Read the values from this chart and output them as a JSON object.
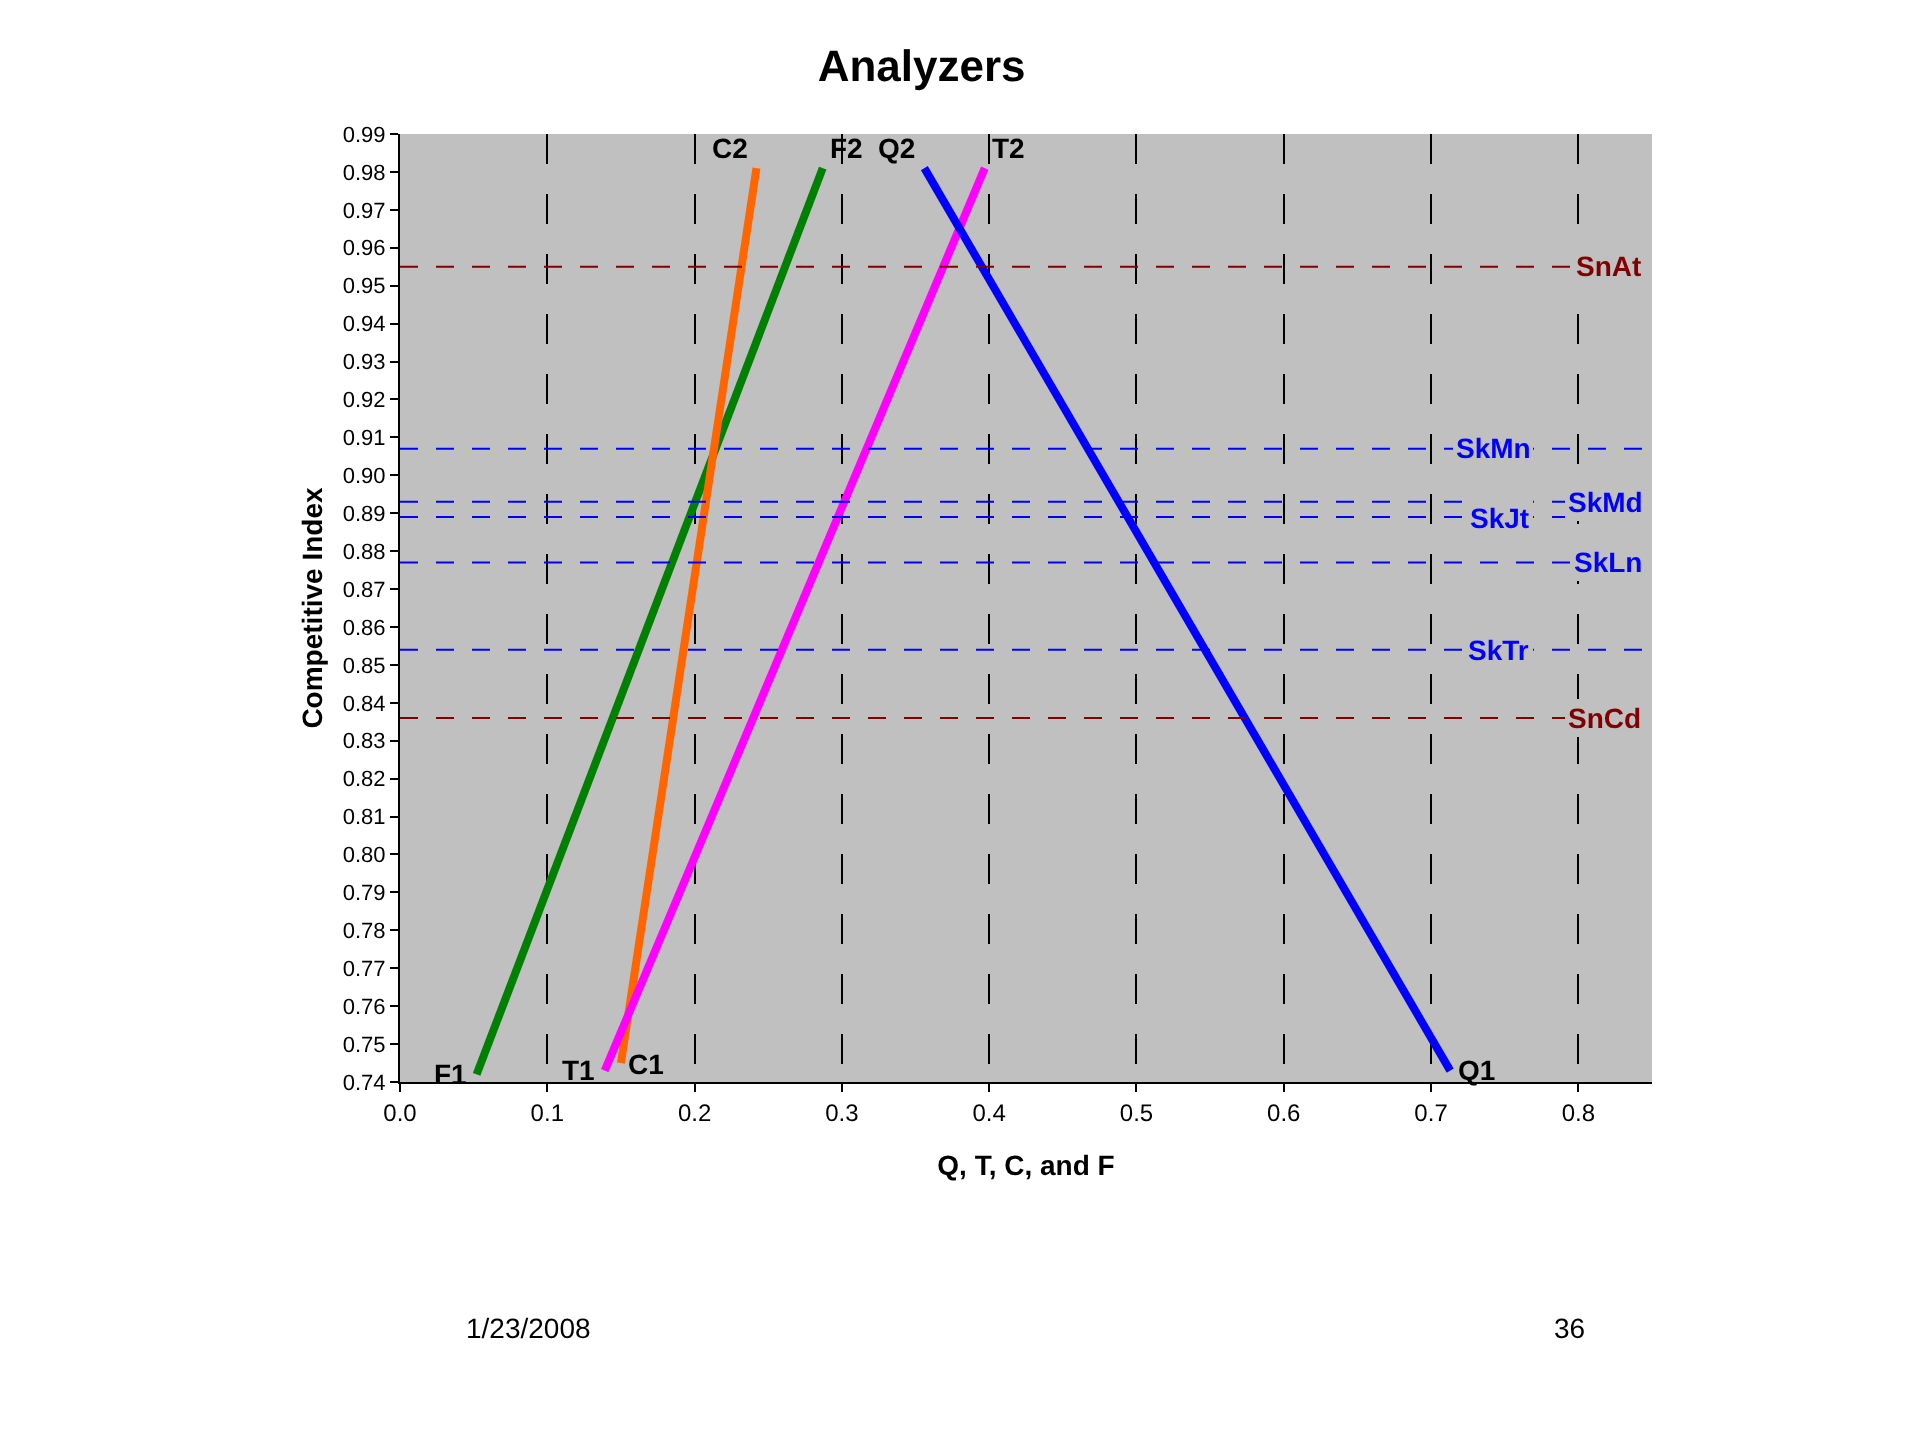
{
  "chart_data": {
    "type": "line",
    "title": "Analyzers",
    "xlabel": "Q, T, C, and F",
    "ylabel": "Competitive Index",
    "series": [
      {
        "color": "#008000",
        "x": [
          0.052,
          0.287
        ],
        "values": [
          0.742,
          0.981
        ]
      },
      {
        "color": "#ff6600",
        "x": [
          0.15,
          0.242
        ],
        "values": [
          0.745,
          0.981
        ]
      },
      {
        "color": "#ff00ff",
        "x": [
          0.139,
          0.397
        ],
        "values": [
          0.743,
          0.981
        ]
      },
      {
        "color": "#0000ff",
        "x": [
          0.713,
          0.356
        ],
        "values": [
          0.743,
          0.981
        ]
      }
    ],
    "xlim": [
      0,
      0.85
    ],
    "xticks": [
      {
        "value": 0,
        "label": "0.0"
      },
      0.1,
      0.2,
      0.3,
      0.4,
      0.5,
      0.6,
      0.7,
      0.8
    ],
    "ylim": [
      0.74,
      0.99
    ],
    "yticks": [
      0.74,
      0.75,
      0.76,
      0.77,
      0.78,
      0.79,
      {
        "value": 0.8,
        "label": "0.80"
      },
      0.81,
      0.82,
      0.83,
      0.84,
      0.85,
      0.86,
      0.87,
      0.88,
      0.89,
      {
        "value": 0.9,
        "label": "0.90"
      },
      0.91,
      0.92,
      0.93,
      0.94,
      0.95,
      0.96,
      0.97,
      0.98,
      0.99
    ],
    "grid": "x",
    "line_style": "solid",
    "marker": "none",
    "ref_lines": [
      {
        "axis": "y",
        "value": 0.955,
        "label": "SnAt",
        "color": "#800000",
        "line_style": "dashed"
      },
      {
        "axis": "y",
        "value": 0.907,
        "label": "SkMn",
        "color": "#0000ff",
        "line_style": "dashed"
      },
      {
        "axis": "y",
        "value": 0.893,
        "label": "SkMd",
        "color": "#0000ff",
        "line_style": "dashed"
      },
      {
        "axis": "y",
        "value": 0.889,
        "label": "SkJt",
        "color": "#0000ff",
        "line_style": "dashed"
      },
      {
        "axis": "y",
        "value": 0.877,
        "label": "SkLn",
        "color": "#0000ff",
        "line_style": "dashed"
      },
      {
        "axis": "y",
        "value": 0.854,
        "label": "SkTr",
        "color": "#0000ff",
        "line_style": "dashed"
      },
      {
        "axis": "y",
        "value": 0.836,
        "label": "SnCd",
        "color": "#800000",
        "line_style": "dashed"
      }
    ],
    "annotations": [
      {
        "text": "F1",
        "x": 0.052,
        "y": 0.742
      },
      {
        "text": "F2",
        "x": 0.287,
        "y": 0.981
      },
      {
        "text": "C1",
        "x": 0.15,
        "y": 0.745
      },
      {
        "text": "C2",
        "x": 0.242,
        "y": 0.981
      },
      {
        "text": "T1",
        "x": 0.139,
        "y": 0.743
      },
      {
        "text": "T2",
        "x": 0.397,
        "y": 0.981
      },
      {
        "text": "Q1",
        "x": 0.713,
        "y": 0.743
      },
      {
        "text": "Q2",
        "x": 0.356,
        "y": 0.981
      },
      "1/23/2008",
      "36"
    ]
  }
}
